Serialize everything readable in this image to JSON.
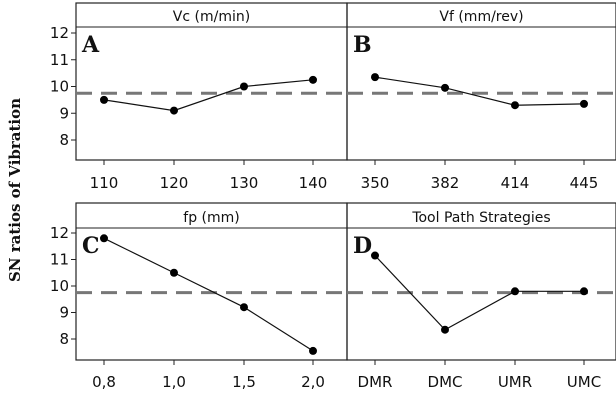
{
  "chart_data": {
    "type": "line",
    "ylabel": "SN ratios of Vibration",
    "reference_line": 9.75,
    "ylim": [
      7.5,
      12.5
    ],
    "yticks": [
      8,
      9,
      10,
      11,
      12
    ],
    "grid": false,
    "colors": {
      "line": "#111111",
      "marker": "#000000",
      "reference": "#777777"
    },
    "panels": [
      {
        "label": "A",
        "title": "Vc (m/min)",
        "categories": [
          "110",
          "120",
          "130",
          "140"
        ],
        "values": [
          9.5,
          9.1,
          10.0,
          10.25
        ]
      },
      {
        "label": "B",
        "title": "Vf (mm/rev)",
        "categories": [
          "350",
          "382",
          "414",
          "445"
        ],
        "values": [
          10.35,
          9.95,
          9.3,
          9.35
        ]
      },
      {
        "label": "C",
        "title": "fp (mm)",
        "categories": [
          "0,8",
          "1,0",
          "1,5",
          "2,0"
        ],
        "values": [
          11.8,
          10.5,
          9.2,
          7.55
        ]
      },
      {
        "label": "D",
        "title": "Tool Path Strategies",
        "categories": [
          "DMR",
          "DMC",
          "UMR",
          "UMC"
        ],
        "values": [
          11.15,
          8.35,
          9.8,
          9.8
        ]
      }
    ]
  }
}
